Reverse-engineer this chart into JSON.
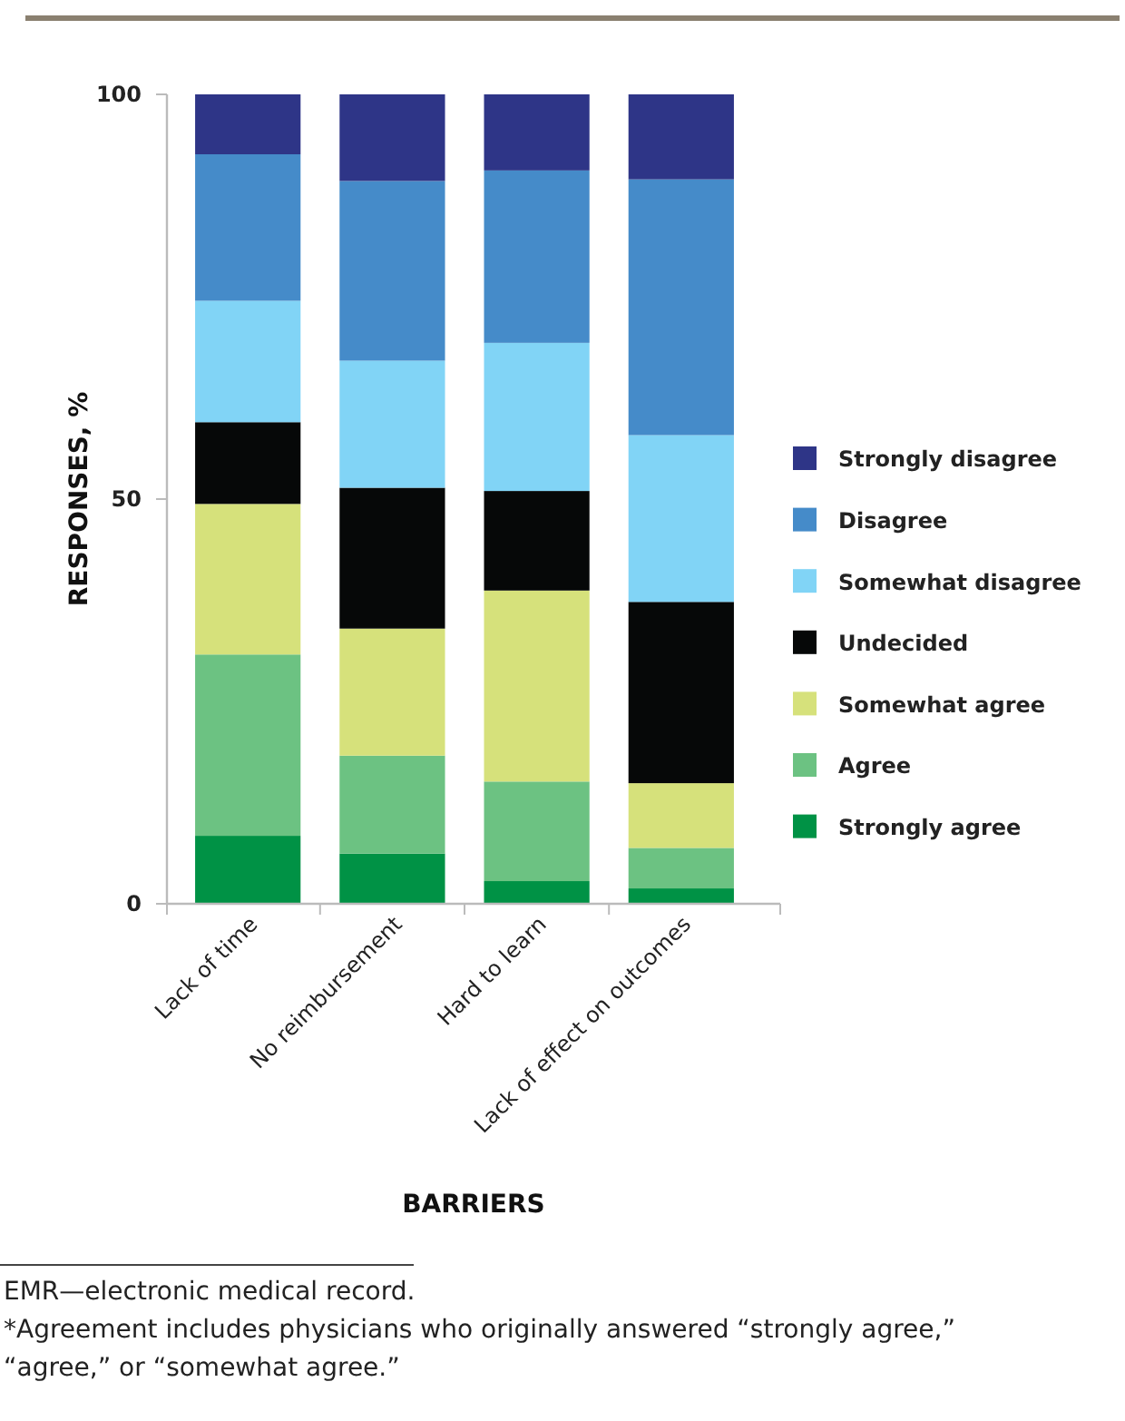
{
  "chart_data": {
    "type": "bar",
    "stacked": true,
    "xlabel": "BARRIERS",
    "ylabel": "RESPONSES, %",
    "categories": [
      "Lack of time",
      "No reimbursement",
      "Hard to learn",
      "Lack of effect on outcomes"
    ],
    "series": [
      {
        "name": "Strongly agree",
        "color": "#009245",
        "values": [
          8.4,
          6.2,
          2.8,
          1.9
        ]
      },
      {
        "name": "Agree",
        "color": "#6cc282",
        "values": [
          22.4,
          12.1,
          12.3,
          5.0
        ]
      },
      {
        "name": "Somewhat agree",
        "color": "#d6e17b",
        "values": [
          18.6,
          15.7,
          23.6,
          8.0
        ]
      },
      {
        "name": "Undecided",
        "color": "#060808",
        "values": [
          10.1,
          17.4,
          12.3,
          22.4
        ]
      },
      {
        "name": "Somewhat disagree",
        "color": "#81d4f6",
        "values": [
          15.0,
          15.7,
          18.3,
          20.6
        ]
      },
      {
        "name": "Disagree",
        "color": "#458bc9",
        "values": [
          18.1,
          22.2,
          21.3,
          31.6
        ]
      },
      {
        "name": "Strongly disagree",
        "color": "#2e3587",
        "values": [
          7.4,
          10.7,
          9.4,
          10.5
        ]
      }
    ],
    "ylim": [
      0,
      100
    ],
    "yticks": [
      0,
      50,
      100
    ],
    "grid": false,
    "legend": "right",
    "annotations": [
      "EMR—electronic medical record.",
      "*Agreement includes physicians who originally answered “strongly agree,” “agree,” or “somewhat agree.”"
    ]
  }
}
